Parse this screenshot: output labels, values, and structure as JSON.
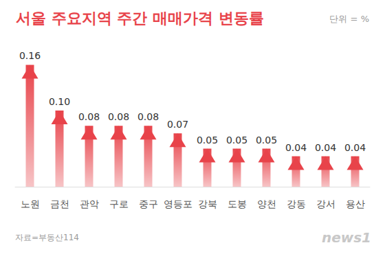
{
  "chart_data": {
    "type": "bar",
    "title": "서울 주요지역 주간 매매가격 변동률",
    "annotations": [
      "단위 = %",
      "자료=부동산114",
      "news1"
    ],
    "categories": [
      "노원",
      "금천",
      "관악",
      "구로",
      "중구",
      "영등포",
      "강북",
      "도봉",
      "양천",
      "강동",
      "강서",
      "용산"
    ],
    "values": [
      0.16,
      0.1,
      0.08,
      0.08,
      0.08,
      0.07,
      0.05,
      0.05,
      0.05,
      0.04,
      0.04,
      0.04
    ],
    "value_labels": [
      "0.16",
      "0.10",
      "0.08",
      "0.08",
      "0.08",
      "0.07",
      "0.05",
      "0.05",
      "0.05",
      "0.04",
      "0.04",
      "0.04"
    ],
    "color": "#e8434a",
    "ylim": [
      0,
      0.2
    ],
    "grid": false,
    "data_labels": true,
    "tick_labels": "x"
  }
}
